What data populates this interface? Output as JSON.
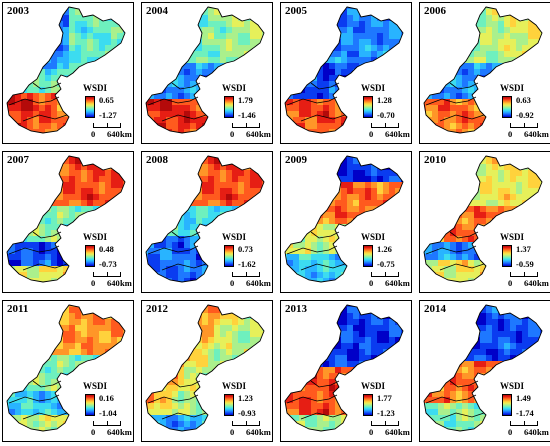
{
  "panels": [
    {
      "year": "2003",
      "legend_title": "WSDI",
      "max": "0.65",
      "min": "-1.27",
      "scale_zero": "0",
      "scale_distance": "640",
      "scale_unit": "km",
      "pattern": "hot-south-west"
    },
    {
      "year": "2004",
      "legend_title": "WSDI",
      "max": "1.79",
      "min": "-1.46",
      "scale_zero": "0",
      "scale_distance": "640",
      "scale_unit": "km",
      "pattern": "hot-south"
    },
    {
      "year": "2005",
      "legend_title": "WSDI",
      "max": "1.28",
      "min": "-0.70",
      "scale_zero": "0",
      "scale_distance": "640",
      "scale_unit": "km",
      "pattern": "hot-south-blue-north"
    },
    {
      "year": "2006",
      "legend_title": "WSDI",
      "max": "0.63",
      "min": "-0.92",
      "scale_zero": "0",
      "scale_distance": "640",
      "scale_unit": "km",
      "pattern": "hot-south-mixed"
    },
    {
      "year": "2007",
      "legend_title": "WSDI",
      "max": "0.48",
      "min": "-0.73",
      "scale_zero": "0",
      "scale_distance": "640",
      "scale_unit": "km",
      "pattern": "hot-north-blue-middle"
    },
    {
      "year": "2008",
      "legend_title": "WSDI",
      "max": "0.73",
      "min": "-1.62",
      "scale_zero": "0",
      "scale_distance": "640",
      "scale_unit": "km",
      "pattern": "hot-north-blue-south"
    },
    {
      "year": "2009",
      "legend_title": "WSDI",
      "max": "1.26",
      "min": "-0.75",
      "scale_zero": "0",
      "scale_distance": "640",
      "scale_unit": "km",
      "pattern": "hot-middle"
    },
    {
      "year": "2010",
      "legend_title": "WSDI",
      "max": "1.37",
      "min": "-0.59",
      "scale_zero": "0",
      "scale_distance": "640",
      "scale_unit": "km",
      "pattern": "hot-middle-west"
    },
    {
      "year": "2011",
      "legend_title": "WSDI",
      "max": "0.16",
      "min": "-1.04",
      "scale_zero": "0",
      "scale_distance": "640",
      "scale_unit": "km",
      "pattern": "hot-north-patchy"
    },
    {
      "year": "2012",
      "legend_title": "WSDI",
      "max": "1.23",
      "min": "-0.93",
      "scale_zero": "0",
      "scale_distance": "640",
      "scale_unit": "km",
      "pattern": "hot-everywhere"
    },
    {
      "year": "2013",
      "legend_title": "WSDI",
      "max": "1.77",
      "min": "-1.23",
      "scale_zero": "0",
      "scale_distance": "640",
      "scale_unit": "km",
      "pattern": "hot-middle-blue-north"
    },
    {
      "year": "2014",
      "legend_title": "WSDI",
      "max": "1.49",
      "min": "-1.74",
      "scale_zero": "0",
      "scale_distance": "640",
      "scale_unit": "km",
      "pattern": "hot-middle-red"
    }
  ]
}
